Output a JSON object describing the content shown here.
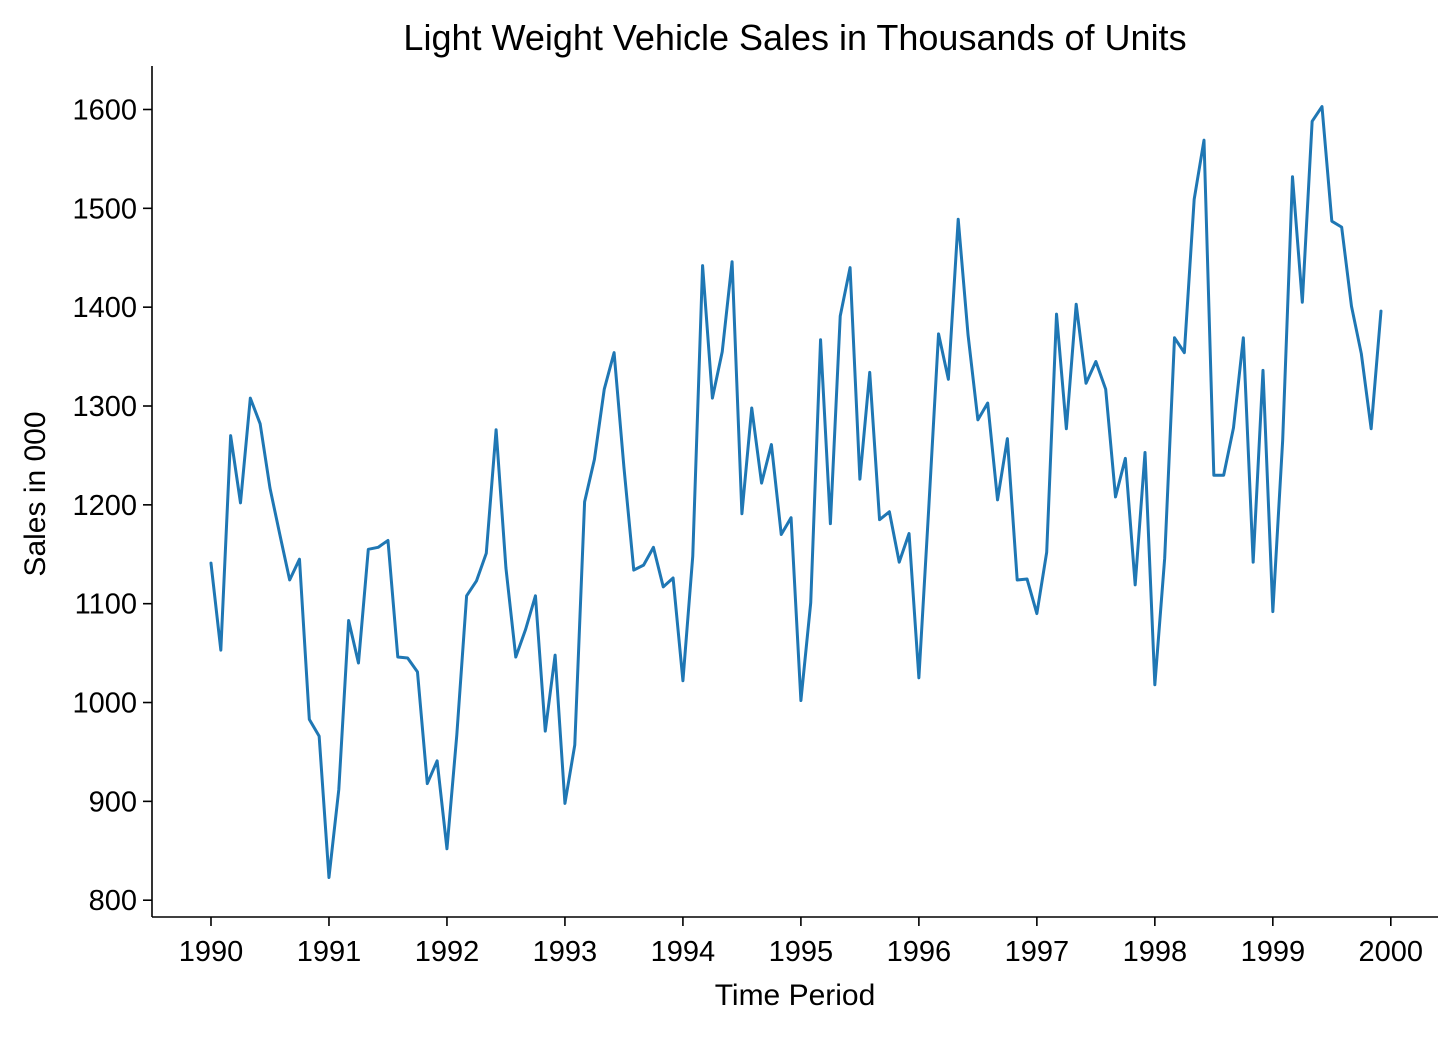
{
  "chart_data": {
    "type": "line",
    "title": "Light Weight Vehicle Sales in Thousands of Units",
    "xlabel": "Time Period",
    "ylabel": "Sales in 000",
    "xlim": [
      1989.5,
      2000.4
    ],
    "ylim": [
      783,
      1644
    ],
    "x_ticks": [
      1990,
      1991,
      1992,
      1993,
      1994,
      1995,
      1996,
      1997,
      1998,
      1999,
      2000
    ],
    "x_tick_labels": [
      "1990",
      "1991",
      "1992",
      "1993",
      "1994",
      "1995",
      "1996",
      "1997",
      "1998",
      "1999",
      "2000"
    ],
    "y_ticks": [
      800,
      900,
      1000,
      1100,
      1200,
      1300,
      1400,
      1500,
      1600
    ],
    "y_tick_labels": [
      "800",
      "900",
      "1000",
      "1100",
      "1200",
      "1300",
      "1400",
      "1500",
      "1600"
    ],
    "grid": false,
    "line_color": "#1f77b4",
    "x_start": "1990-01",
    "x_step": "monthly",
    "values": [
      1141,
      1053,
      1270,
      1202,
      1308,
      1282,
      1217,
      1170,
      1124,
      1145,
      983,
      966,
      823,
      912,
      1083,
      1040,
      1155,
      1157,
      1164,
      1046,
      1045,
      1031,
      918,
      941,
      852,
      967,
      1108,
      1123,
      1151,
      1276,
      1136,
      1046,
      1074,
      1108,
      971,
      1048,
      898,
      957,
      1203,
      1246,
      1317,
      1354,
      1238,
      1134,
      1139,
      1157,
      1117,
      1126,
      1022,
      1148,
      1442,
      1308,
      1355,
      1446,
      1191,
      1298,
      1222,
      1261,
      1170,
      1187,
      1002,
      1101,
      1367,
      1181,
      1391,
      1440,
      1226,
      1334,
      1185,
      1193,
      1142,
      1171,
      1025,
      1196,
      1373,
      1327,
      1489,
      1372,
      1286,
      1303,
      1205,
      1267,
      1124,
      1125,
      1090,
      1152,
      1393,
      1277,
      1403,
      1323,
      1345,
      1317,
      1208,
      1247,
      1119,
      1253,
      1018,
      1146,
      1369,
      1354,
      1509,
      1569,
      1230,
      1230,
      1278,
      1369,
      1142,
      1336,
      1092,
      1265,
      1532,
      1405,
      1588,
      1603,
      1487,
      1481,
      1401,
      1353,
      1277,
      1396
    ]
  }
}
